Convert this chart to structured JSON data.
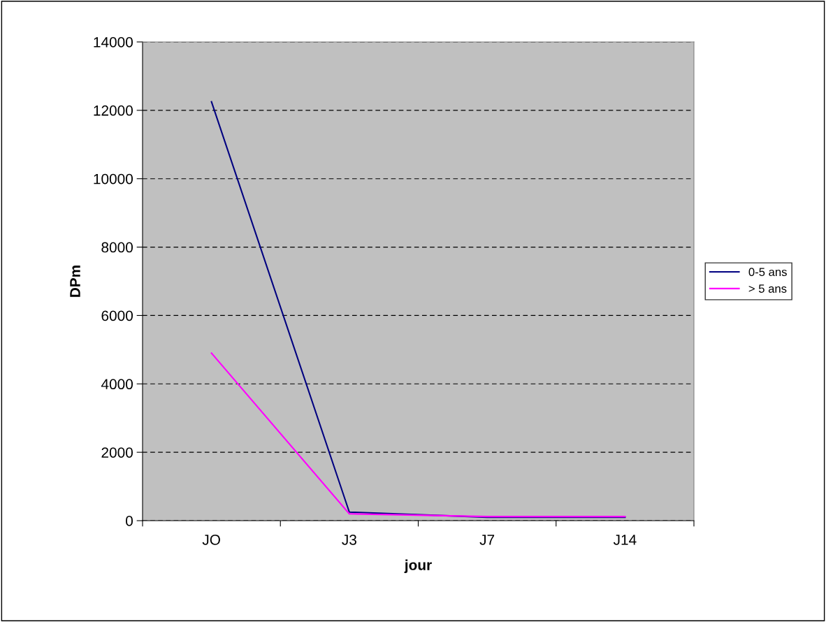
{
  "chart_data": {
    "type": "line",
    "xlabel": "jour",
    "ylabel": "DPm",
    "categories": [
      "JO",
      "J3",
      "J7",
      "J14"
    ],
    "series": [
      {
        "name": "0-5 ans",
        "color": "#000080",
        "values": [
          12250,
          250,
          100,
          100
        ]
      },
      {
        "name": "> 5 ans",
        "color": "#ff00ff",
        "values": [
          4900,
          200,
          120,
          120
        ]
      }
    ],
    "ylim": [
      0,
      14000
    ],
    "yticks": [
      0,
      2000,
      4000,
      6000,
      8000,
      10000,
      12000,
      14000
    ],
    "grid": "y",
    "legend": "right",
    "marker": "none",
    "line_style": "solid"
  }
}
